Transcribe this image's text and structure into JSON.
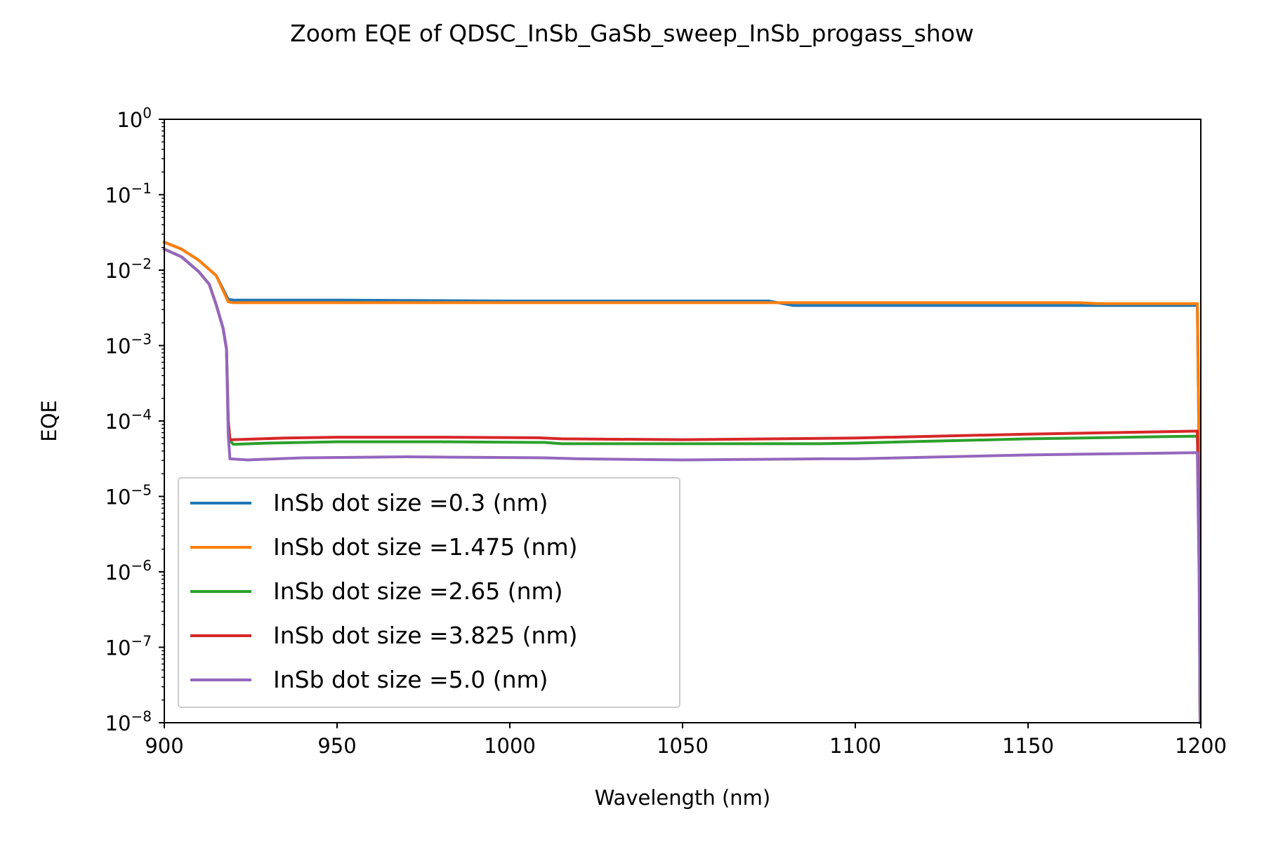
{
  "chart_data": {
    "type": "line",
    "title": "Zoom EQE of QDSC_InSb_GaSb_sweep_InSb_progass_show",
    "xlabel": "Wavelength (nm)",
    "ylabel": "EQE",
    "xlim": [
      900,
      1200
    ],
    "ylim": [
      1e-08,
      1
    ],
    "yscale": "log",
    "x_ticks": [
      "900",
      "950",
      "1000",
      "1050",
      "1100",
      "1150",
      "1200"
    ],
    "y_ticks": [
      {
        "base": "10",
        "exp": "0"
      },
      {
        "base": "10",
        "exp": "−1"
      },
      {
        "base": "10",
        "exp": "−2"
      },
      {
        "base": "10",
        "exp": "−3"
      },
      {
        "base": "10",
        "exp": "−4"
      },
      {
        "base": "10",
        "exp": "−5"
      },
      {
        "base": "10",
        "exp": "−6"
      },
      {
        "base": "10",
        "exp": "−7"
      },
      {
        "base": "10",
        "exp": "−8"
      }
    ],
    "grid": false,
    "legend_position": "lower-left",
    "series": [
      {
        "name": "InSb dot size =0.3 (nm)",
        "color": "#1f77b4",
        "points": [
          [
            900,
            0.0235
          ],
          [
            905,
            0.019
          ],
          [
            910,
            0.0135
          ],
          [
            915,
            0.0085
          ],
          [
            918.5,
            0.0041
          ],
          [
            920,
            0.004
          ],
          [
            950,
            0.004
          ],
          [
            1000,
            0.0039
          ],
          [
            1050,
            0.0039
          ],
          [
            1075,
            0.0039
          ],
          [
            1082,
            0.0034
          ],
          [
            1100,
            0.0034
          ],
          [
            1150,
            0.0034
          ],
          [
            1199,
            0.0034
          ],
          [
            1199.5,
            4e-05
          ],
          [
            1199.8,
            1e-08
          ]
        ]
      },
      {
        "name": "InSb dot size =1.475 (nm)",
        "color": "#ff7f0e",
        "points": [
          [
            900,
            0.0235
          ],
          [
            905,
            0.019
          ],
          [
            910,
            0.0135
          ],
          [
            915,
            0.0085
          ],
          [
            918.5,
            0.0038
          ],
          [
            920,
            0.0037
          ],
          [
            950,
            0.0037
          ],
          [
            1000,
            0.0037
          ],
          [
            1050,
            0.0037
          ],
          [
            1080,
            0.0037
          ],
          [
            1100,
            0.0037
          ],
          [
            1150,
            0.0037
          ],
          [
            1165,
            0.0037
          ],
          [
            1170,
            0.0036
          ],
          [
            1199,
            0.0036
          ],
          [
            1199.5,
            4e-05
          ],
          [
            1199.8,
            1e-08
          ]
        ]
      },
      {
        "name": "InSb dot size =2.65 (nm)",
        "color": "#2ca02c",
        "points": [
          [
            900,
            0.019
          ],
          [
            905,
            0.015
          ],
          [
            910,
            0.0095
          ],
          [
            913,
            0.0065
          ],
          [
            915,
            0.0035
          ],
          [
            917,
            0.0017
          ],
          [
            918,
            0.0009
          ],
          [
            918.5,
            0.0001
          ],
          [
            919,
            5.5e-05
          ],
          [
            920,
            4.9e-05
          ],
          [
            930,
            5.1e-05
          ],
          [
            950,
            5.3e-05
          ],
          [
            980,
            5.3e-05
          ],
          [
            1010,
            5.2e-05
          ],
          [
            1015,
            5e-05
          ],
          [
            1050,
            5e-05
          ],
          [
            1090,
            5e-05
          ],
          [
            1100,
            5.1e-05
          ],
          [
            1150,
            5.8e-05
          ],
          [
            1199,
            6.3e-05
          ],
          [
            1199.5,
            5e-06
          ],
          [
            1199.8,
            1e-08
          ]
        ]
      },
      {
        "name": "InSb dot size =3.825 (nm)",
        "color": "#d62728",
        "points": [
          [
            900,
            0.019
          ],
          [
            905,
            0.015
          ],
          [
            910,
            0.0095
          ],
          [
            913,
            0.0065
          ],
          [
            915,
            0.0035
          ],
          [
            917,
            0.0017
          ],
          [
            918,
            0.0009
          ],
          [
            918.5,
            0.0001
          ],
          [
            919,
            5.65e-05
          ],
          [
            920,
            5.65e-05
          ],
          [
            935,
            5.95e-05
          ],
          [
            950,
            6.1e-05
          ],
          [
            980,
            6.1e-05
          ],
          [
            1008,
            6e-05
          ],
          [
            1015,
            5.8e-05
          ],
          [
            1050,
            5.65e-05
          ],
          [
            1100,
            5.95e-05
          ],
          [
            1150,
            6.7e-05
          ],
          [
            1199,
            7.35e-05
          ],
          [
            1199.5,
            5e-06
          ],
          [
            1199.8,
            1e-08
          ]
        ]
      },
      {
        "name": "InSb dot size =5.0 (nm)",
        "color": "#9467bd",
        "points": [
          [
            900,
            0.019
          ],
          [
            905,
            0.015
          ],
          [
            910,
            0.0095
          ],
          [
            913,
            0.0065
          ],
          [
            915,
            0.0035
          ],
          [
            917,
            0.0017
          ],
          [
            918,
            0.0009
          ],
          [
            918.5,
            6.5e-05
          ],
          [
            919,
            3.15e-05
          ],
          [
            924,
            3.05e-05
          ],
          [
            940,
            3.25e-05
          ],
          [
            970,
            3.35e-05
          ],
          [
            1010,
            3.25e-05
          ],
          [
            1020,
            3.15e-05
          ],
          [
            1050,
            3.05e-05
          ],
          [
            1090,
            3.15e-05
          ],
          [
            1100,
            3.15e-05
          ],
          [
            1150,
            3.55e-05
          ],
          [
            1199,
            3.8e-05
          ],
          [
            1199.5,
            1e-06
          ],
          [
            1199.8,
            1e-08
          ]
        ]
      }
    ]
  }
}
